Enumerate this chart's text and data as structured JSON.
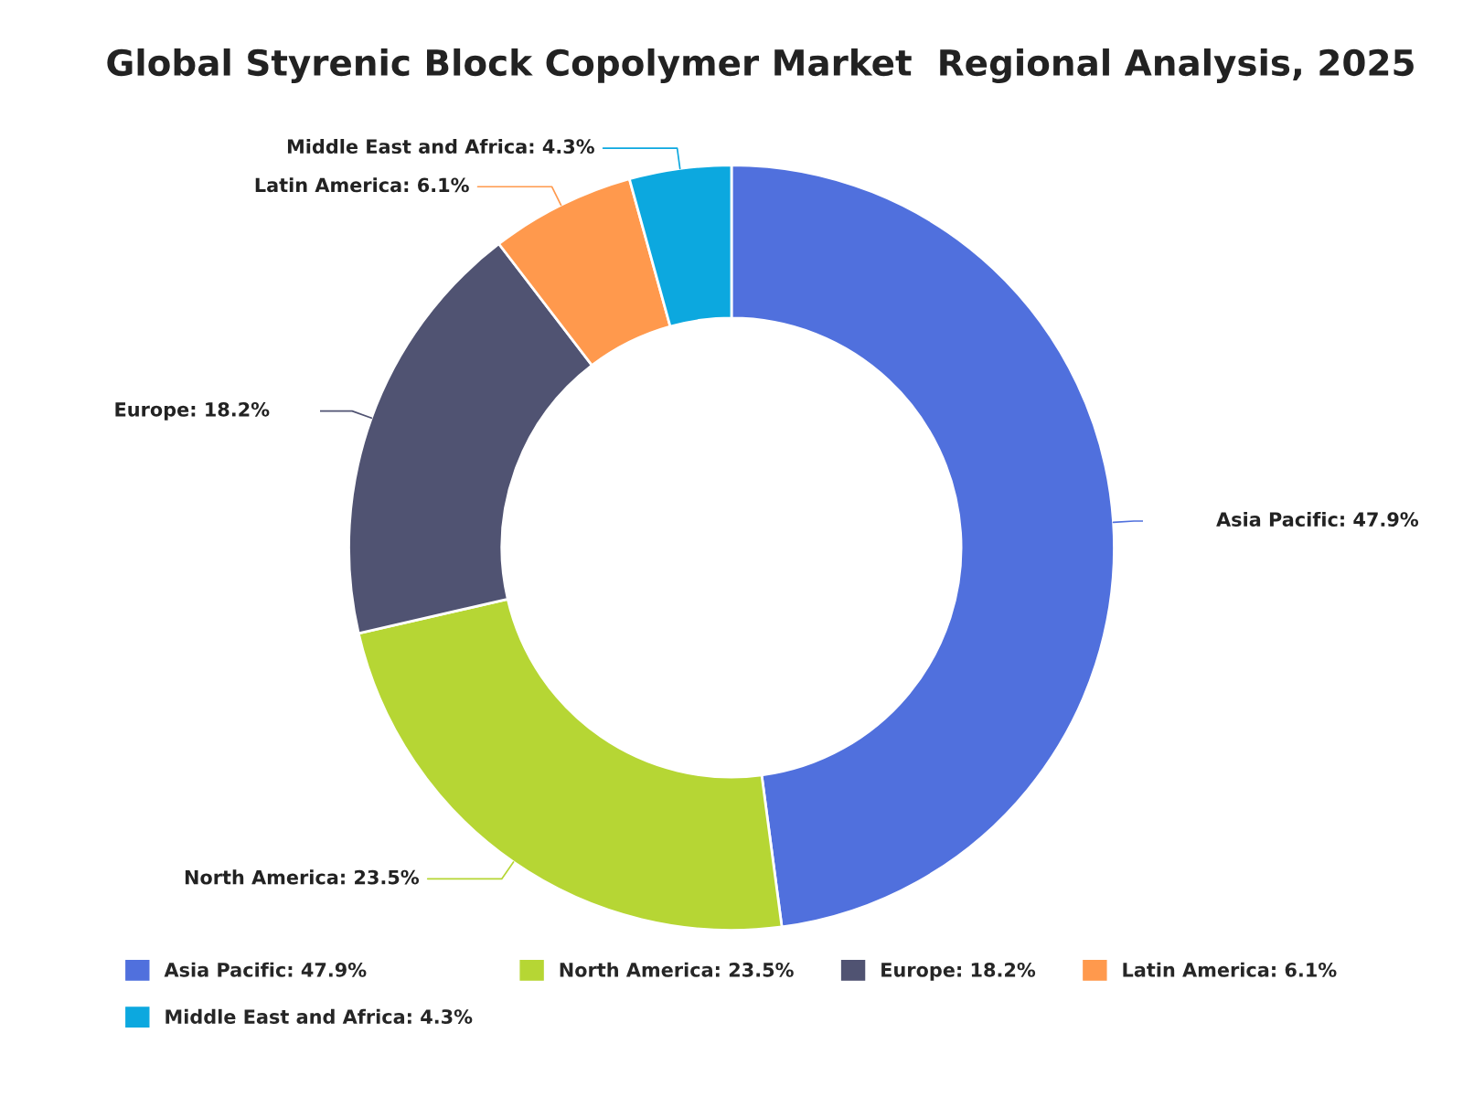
{
  "chart_data": {
    "type": "donut",
    "title": "Global Styrenic Block Copolymer Market  Regional Analysis, 2025",
    "categories": [
      "Asia Pacific",
      "North America",
      "Europe",
      "Latin America",
      "Middle East and Africa"
    ],
    "values": [
      47.9,
      23.5,
      18.2,
      6.1,
      4.3
    ],
    "value_labels": [
      "47.9%",
      "23.5%",
      "18.2%",
      "6.1%",
      "4.3%"
    ],
    "colors": [
      "#5070dd",
      "#b6d634",
      "#505372",
      "#ff994d",
      "#0ca8df"
    ],
    "legend": "bottom"
  }
}
